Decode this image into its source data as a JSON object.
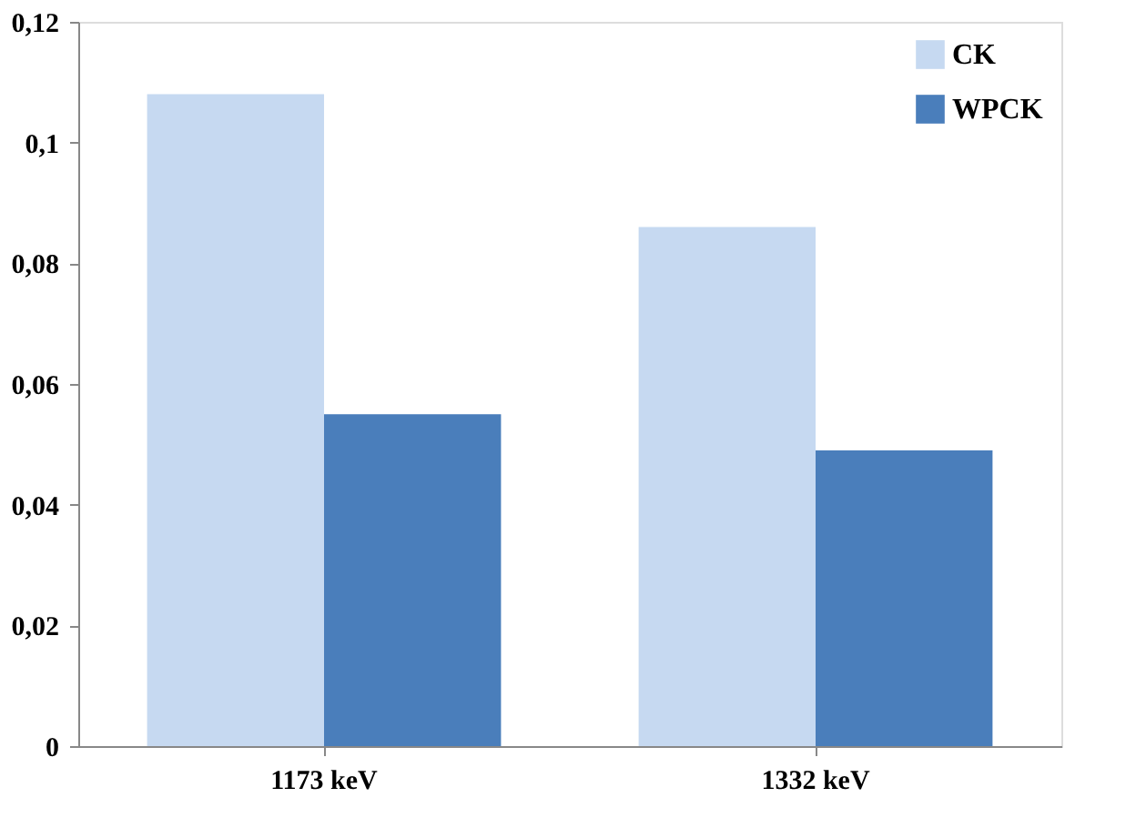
{
  "chart_data": {
    "type": "bar",
    "categories": [
      "1173 keV",
      "1332 keV"
    ],
    "series": [
      {
        "name": "CK",
        "color": "#c6d9f1",
        "values": [
          0.108,
          0.086
        ]
      },
      {
        "name": "WPCK",
        "color": "#4a7ebb",
        "values": [
          0.055,
          0.049
        ]
      }
    ],
    "ylim": [
      0,
      0.12
    ],
    "yticks": [
      0,
      {
        "value": 0.02,
        "label": "0,02"
      },
      {
        "value": 0.04,
        "label": "0,04"
      },
      {
        "value": 0.06,
        "label": "0,06"
      },
      {
        "value": 0.08,
        "label": "0,08"
      },
      {
        "value": 0.1,
        "label": "0,1"
      },
      {
        "value": 0.12,
        "label": "0,12"
      }
    ],
    "grid": false,
    "legend": "top right"
  }
}
